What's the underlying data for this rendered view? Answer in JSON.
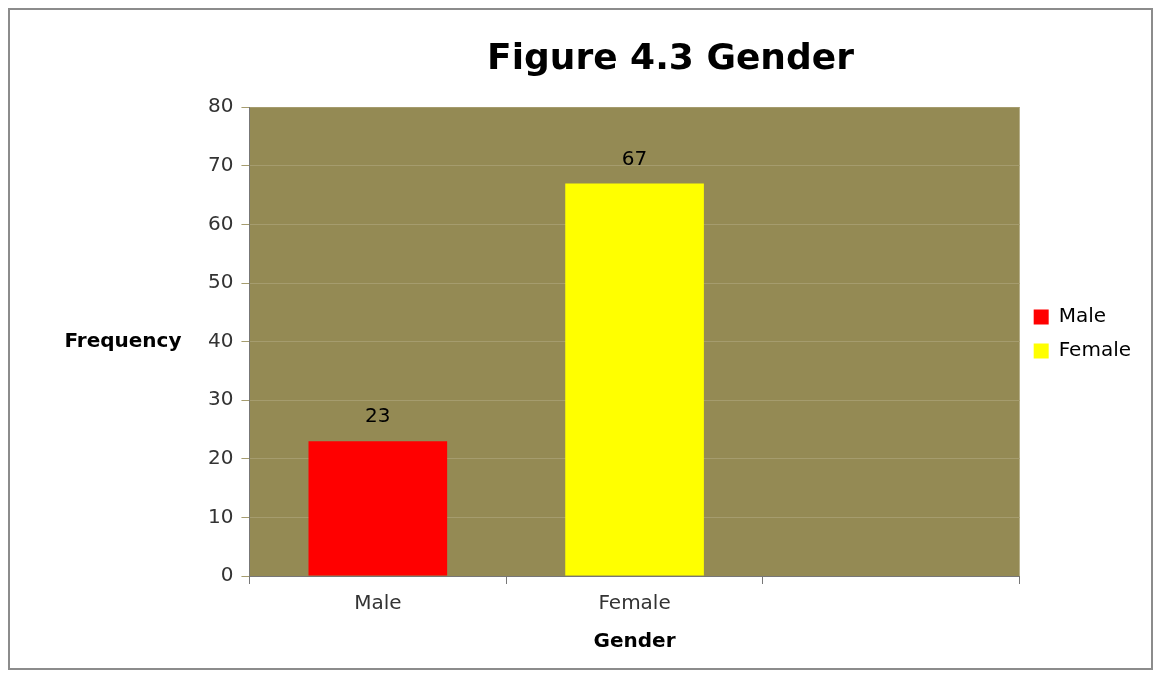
{
  "chart_data": {
    "type": "bar",
    "title": "Figure 4.3 Gender",
    "xlabel": "Gender",
    "ylabel": "Frequency",
    "categories": [
      "Male",
      "Female",
      null
    ],
    "series": [
      {
        "name": "Male",
        "color": "#ff0000",
        "values": [
          23,
          null,
          null
        ]
      },
      {
        "name": "Female",
        "color": "#ffff00",
        "values": [
          null,
          67,
          null
        ]
      }
    ],
    "ylim": [
      0,
      80
    ],
    "yticks": [
      0,
      10,
      20,
      30,
      40,
      50,
      60,
      70,
      80
    ],
    "grid": "y",
    "legend": "right",
    "data_labels": true
  }
}
